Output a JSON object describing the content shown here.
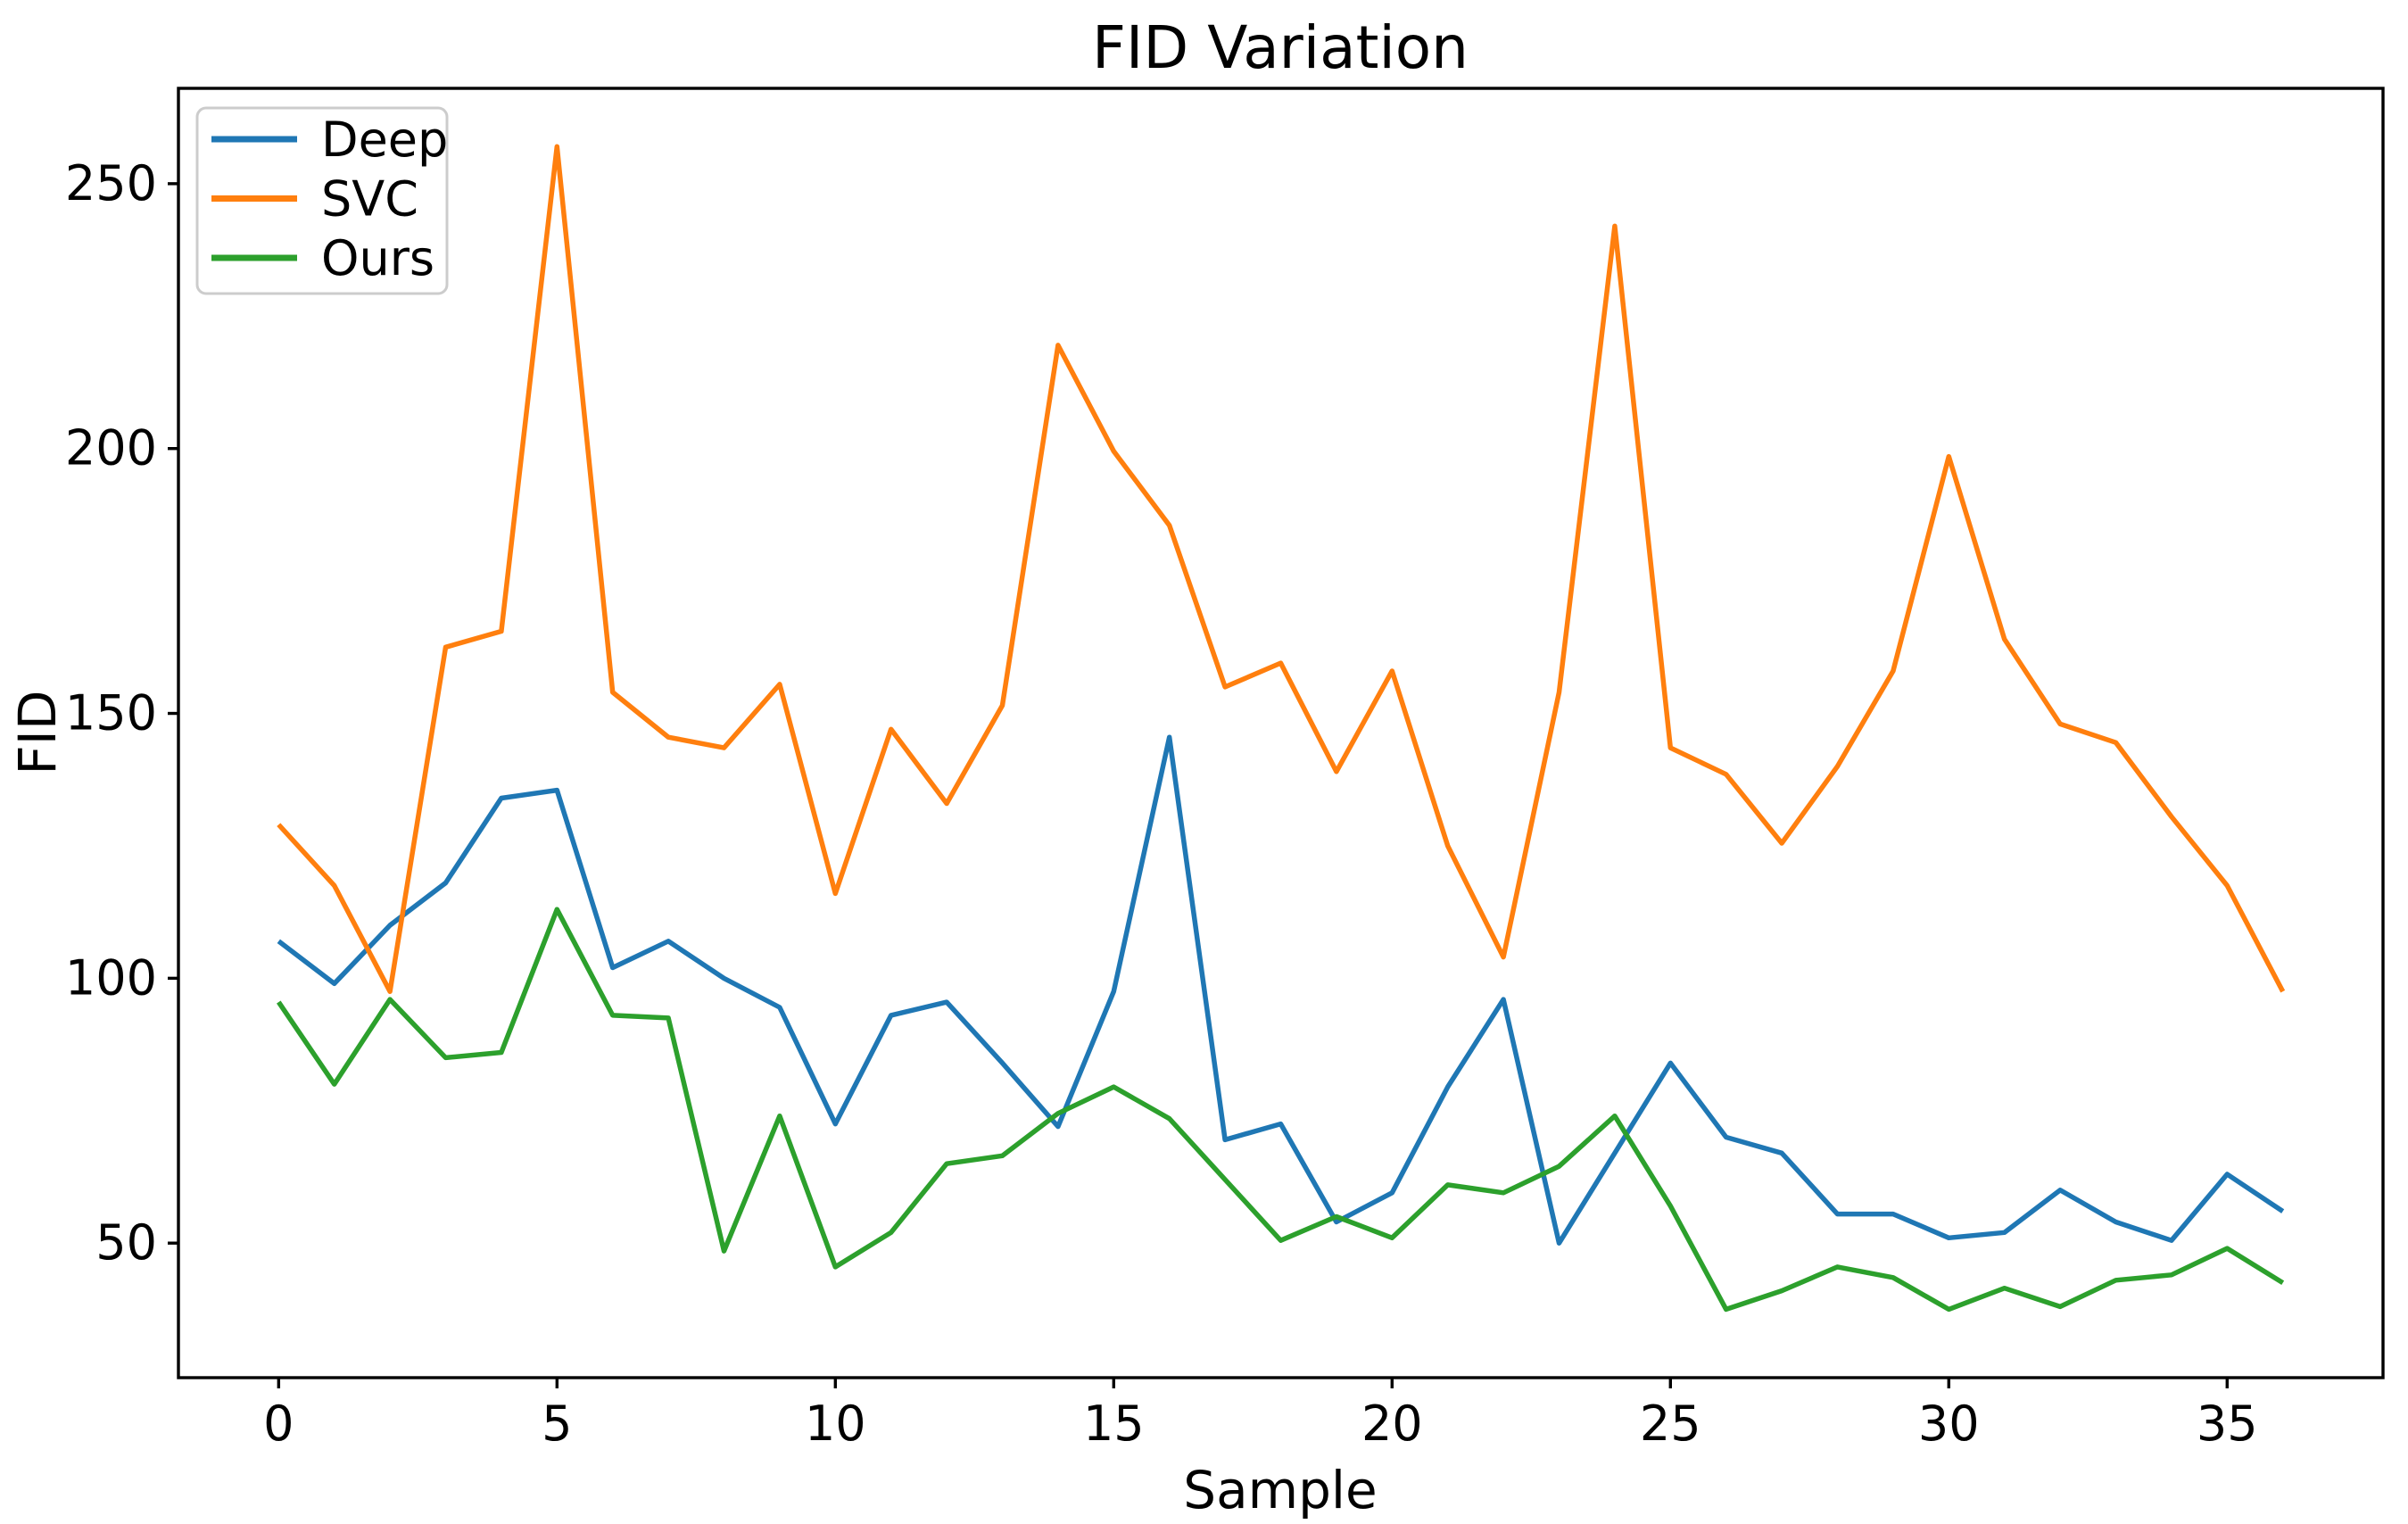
{
  "chart_data": {
    "type": "line",
    "title": "FID Variation",
    "xlabel": "Sample",
    "ylabel": "FID",
    "grid": false,
    "background": "#ffffff",
    "axis_color": "#000000",
    "xlim": [
      -1.8,
      37.8
    ],
    "ylim": [
      24.6,
      268.0
    ],
    "xticks": [
      0,
      5,
      10,
      15,
      20,
      25,
      30,
      35
    ],
    "yticks": [
      50,
      100,
      150,
      200,
      250
    ],
    "legend": {
      "position": "upper left",
      "entries": [
        "Deep",
        "SVC",
        "Ours"
      ]
    },
    "x": [
      0,
      1,
      2,
      3,
      4,
      5,
      6,
      7,
      8,
      9,
      10,
      11,
      12,
      13,
      14,
      15,
      16,
      17,
      18,
      19,
      20,
      21,
      22,
      23,
      24,
      25,
      26,
      27,
      28,
      29,
      30,
      31,
      32,
      33,
      34,
      35,
      36
    ],
    "series": [
      {
        "name": "Deep",
        "color": "#1f77b4",
        "values": [
          107,
          99,
          110,
          118,
          134,
          135.5,
          102,
          107,
          100,
          94.5,
          72.5,
          93,
          95.5,
          84,
          72,
          97.5,
          145.5,
          69.5,
          72.5,
          54,
          59.5,
          79.5,
          96,
          50,
          67,
          84,
          70,
          67,
          55.5,
          55.5,
          51,
          52,
          60,
          54,
          50.5,
          63,
          56
        ]
      },
      {
        "name": "SVC",
        "color": "#ff7f0e",
        "values": [
          129,
          117.5,
          97.5,
          162.5,
          165.5,
          257,
          154,
          145.5,
          143.5,
          155.5,
          116,
          147,
          133,
          151.5,
          219.5,
          199.5,
          185.5,
          155,
          159.5,
          139,
          158,
          125,
          104,
          154,
          242,
          143.5,
          138.5,
          125.5,
          140,
          158,
          198.5,
          164,
          148,
          144.5,
          130.5,
          117.5,
          97.5
        ]
      },
      {
        "name": "Ours",
        "color": "#2ca02c",
        "values": [
          95.5,
          80,
          96,
          85,
          86,
          113,
          93,
          92.5,
          48.5,
          74,
          45.5,
          52,
          65,
          66.5,
          74.5,
          79.5,
          73.5,
          62,
          50.5,
          55,
          51,
          61,
          59.5,
          64.5,
          74,
          57,
          37.5,
          41,
          45.5,
          43.5,
          37.5,
          41.5,
          38,
          43,
          44,
          49,
          42.5
        ]
      }
    ]
  }
}
